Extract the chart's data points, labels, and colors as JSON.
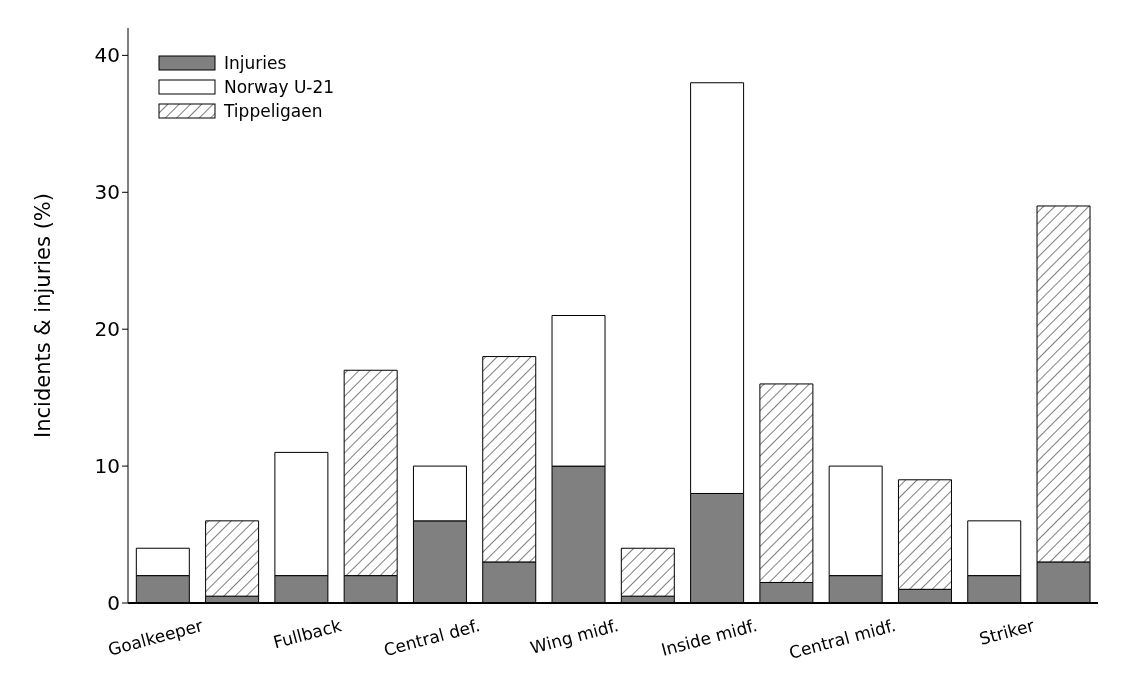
{
  "chart_data": {
    "type": "bar",
    "ylabel": "Incidents & injuries (%)",
    "categories": [
      "Goalkeeper",
      null,
      "Fullback",
      null,
      "Central def.",
      null,
      "Wing midf.",
      null,
      "Inside midf.",
      null,
      "Central midf.",
      null,
      "Striker",
      null
    ],
    "stacked": true,
    "series": [
      {
        "name": "Injuries",
        "color": "#808080",
        "values": [
          2,
          0.5,
          2,
          2,
          6,
          3,
          10,
          0.5,
          8,
          1.5,
          2,
          1,
          2,
          3
        ]
      },
      {
        "name": "Norway U-21",
        "color": "#ffffff",
        "values": [
          2,
          null,
          9,
          null,
          4,
          null,
          11,
          null,
          30,
          null,
          8,
          null,
          4,
          null
        ]
      },
      {
        "name": "Tippeligaen",
        "color": "#000000",
        "values": [
          null,
          5.5,
          null,
          15,
          null,
          15,
          null,
          3.5,
          null,
          14.5,
          null,
          8,
          null,
          26
        ]
      }
    ],
    "ylim": [
      0,
      42
    ],
    "yticks": [
      0,
      10,
      20,
      30,
      40
    ],
    "grid": false,
    "legend": "top left"
  }
}
